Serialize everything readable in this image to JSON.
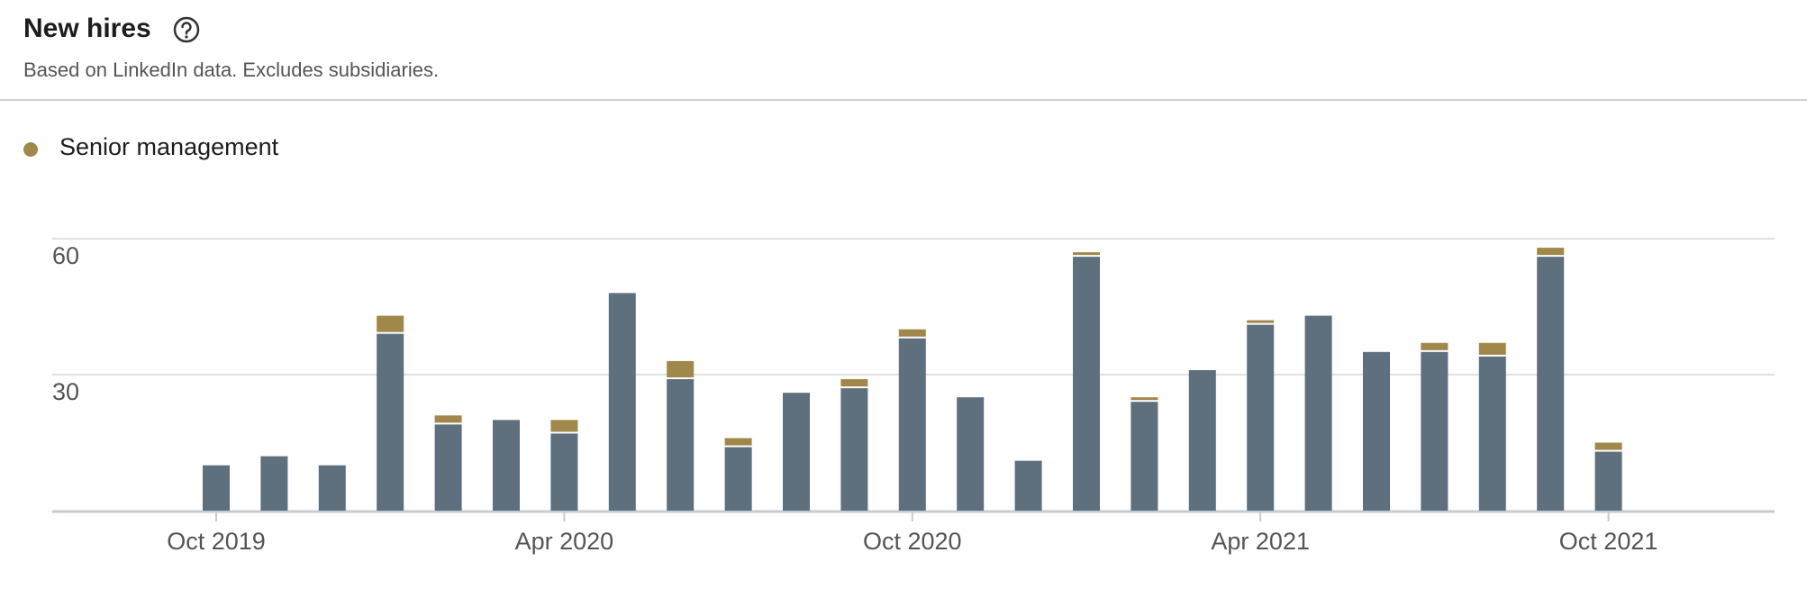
{
  "chart_data": {
    "type": "stacked-bar",
    "title": "New hires",
    "subtitle": "Based on LinkedIn data. Excludes subsidiaries.",
    "categories": [
      "Oct 2019",
      null,
      null,
      null,
      null,
      null,
      "Apr 2020",
      null,
      null,
      null,
      null,
      null,
      "Oct 2020",
      null,
      null,
      null,
      null,
      null,
      "Apr 2021",
      null,
      null,
      null,
      null,
      null,
      "Oct 2021"
    ],
    "series": [
      {
        "color": "#5e6f7d",
        "values": [
          10,
          12,
          10,
          39,
          19,
          20,
          17,
          48,
          29,
          14,
          26,
          27,
          38,
          25,
          11,
          56,
          24,
          31,
          41,
          43,
          35,
          35,
          34,
          56,
          13
        ]
      },
      {
        "name": "Senior management",
        "color": "#a0884a",
        "values": [
          0,
          0,
          0,
          4,
          2,
          0,
          3,
          0,
          4,
          2,
          0,
          2,
          2,
          0,
          0,
          1,
          1,
          0,
          1,
          0,
          0,
          2,
          3,
          2,
          2
        ]
      }
    ],
    "ylim": [
      0,
      60
    ],
    "yticks": [
      30,
      60
    ],
    "grid": true
  }
}
